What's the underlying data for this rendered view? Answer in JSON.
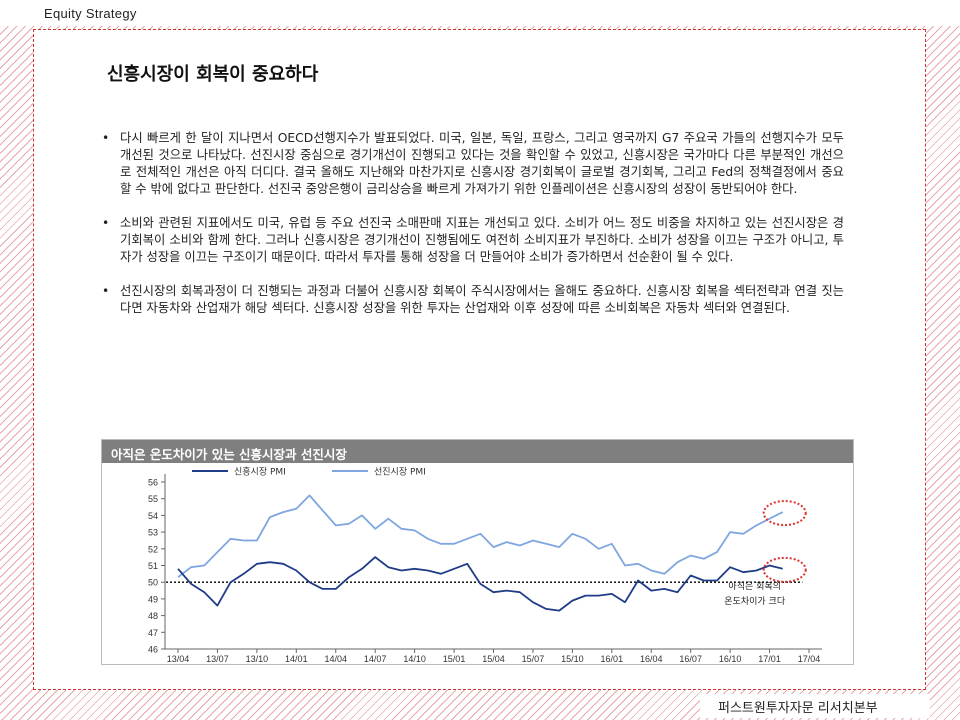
{
  "header": {
    "label": "Equity Strategy"
  },
  "title": "신흥시장이 회복이 중요하다",
  "bullets": [
    "다시 빠르게 한 달이 지나면서 OECD선행지수가 발표되었다. 미국, 일본, 독일, 프랑스, 그리고 영국까지 G7 주요국 가들의 선행지수가 모두 개선된 것으로 나타났다. 선진시장 중심으로 경기개선이 진행되고 있다는 것을 확인할 수 있었고, 신흥시장은 국가마다 다른 부분적인 개선으로 전체적인 개선은 아직 더디다. 결국 올해도 지난해와 마찬가지로 신흥시장 경기회복이 글로벌 경기회복, 그리고 Fed의 정책결정에서 중요할 수 밖에 없다고 판단한다. 선진국 중앙은행이 금리상승을 빠르게 가져가기 위한 인플레이션은 신흥시장의 성장이 동반되어야 한다.",
    "소비와 관련된 지표에서도 미국, 유럽 등 주요 선진국 소매판매 지표는 개선되고 있다. 소비가 어느 정도 비중을 차지하고 있는 선진시장은 경기회복이 소비와 함께 한다. 그러나 신흥시장은 경기개선이 진행됨에도 여전히 소비지표가 부진하다. 소비가 성장을 이끄는 구조가 아니고, 투자가 성장을 이끄는 구조이기 때문이다. 따라서 투자를 통해 성장을 더 만들어야 소비가 증가하면서 선순환이 될 수 있다.",
    "선진시장의 회복과정이 더 진행되는 과정과 더불어 신흥시장 회복이 주식시장에서는 올해도 중요하다. 신흥시장 회복을 섹터전략과 연결 짓는 다면 자동차와 산업재가 해당 섹터다. 신흥시장 성장을 위한 투자는 산업재와 이후 성장에 따른 소비회복은 자동차 섹터와 연결된다."
  ],
  "chart_data": {
    "type": "line",
    "title": "아직은 온도차이가 있는 신흥시장과 선진시장",
    "xlabel": "",
    "ylabel": "",
    "ylim": [
      46,
      56
    ],
    "yticks": [
      46,
      47,
      48,
      49,
      50,
      51,
      52,
      53,
      54,
      55,
      56
    ],
    "xticks": [
      "13/04",
      "13/07",
      "13/10",
      "14/01",
      "14/04",
      "14/07",
      "14/10",
      "15/01",
      "15/04",
      "15/07",
      "15/10",
      "16/01",
      "16/04",
      "16/07",
      "16/10",
      "17/01",
      "17/04"
    ],
    "x": [
      "13/04",
      "13/05",
      "13/06",
      "13/07",
      "13/08",
      "13/09",
      "13/10",
      "13/11",
      "13/12",
      "14/01",
      "14/02",
      "14/03",
      "14/04",
      "14/05",
      "14/06",
      "14/07",
      "14/08",
      "14/09",
      "14/10",
      "14/11",
      "14/12",
      "15/01",
      "15/02",
      "15/03",
      "15/04",
      "15/05",
      "15/06",
      "15/07",
      "15/08",
      "15/09",
      "15/10",
      "15/11",
      "15/12",
      "16/01",
      "16/02",
      "16/03",
      "16/04",
      "16/05",
      "16/06",
      "16/07",
      "16/08",
      "16/09",
      "16/10",
      "16/11",
      "16/12",
      "17/01",
      "17/02"
    ],
    "series": [
      {
        "name": "신흥시장 PMI",
        "color": "#1f3c88",
        "values": [
          50.8,
          49.9,
          49.4,
          48.6,
          50.0,
          50.5,
          51.1,
          51.2,
          51.1,
          50.7,
          50.0,
          49.6,
          49.6,
          50.3,
          50.8,
          51.5,
          50.9,
          50.7,
          50.8,
          50.7,
          50.5,
          50.8,
          51.1,
          49.9,
          49.4,
          49.5,
          49.4,
          48.8,
          48.4,
          48.3,
          48.9,
          49.2,
          49.2,
          49.3,
          48.8,
          50.1,
          49.5,
          49.6,
          49.4,
          50.4,
          50.1,
          50.1,
          50.9,
          50.6,
          50.7,
          51.0,
          50.8
        ]
      },
      {
        "name": "선진시장 PMI",
        "color": "#7fa6e0",
        "values": [
          50.3,
          50.9,
          51.0,
          51.8,
          52.6,
          52.5,
          52.5,
          53.9,
          54.2,
          54.4,
          55.2,
          54.3,
          53.4,
          53.5,
          54.0,
          53.2,
          53.8,
          53.2,
          53.1,
          52.6,
          52.3,
          52.3,
          52.6,
          52.9,
          52.1,
          52.4,
          52.2,
          52.5,
          52.3,
          52.1,
          52.9,
          52.6,
          52.0,
          52.3,
          51.0,
          51.1,
          50.7,
          50.5,
          51.2,
          51.6,
          51.4,
          51.8,
          53.0,
          52.9,
          53.4,
          53.8,
          54.2
        ]
      }
    ],
    "reference_line": {
      "value": 50,
      "style": "dotted"
    },
    "annotation": {
      "text_line1": "아직은 회복의",
      "text_line2": "온도차이가 크다"
    },
    "legend": "top-left",
    "grid": false
  },
  "footer": {
    "label": "퍼스트원투자자문 리서치본부"
  }
}
